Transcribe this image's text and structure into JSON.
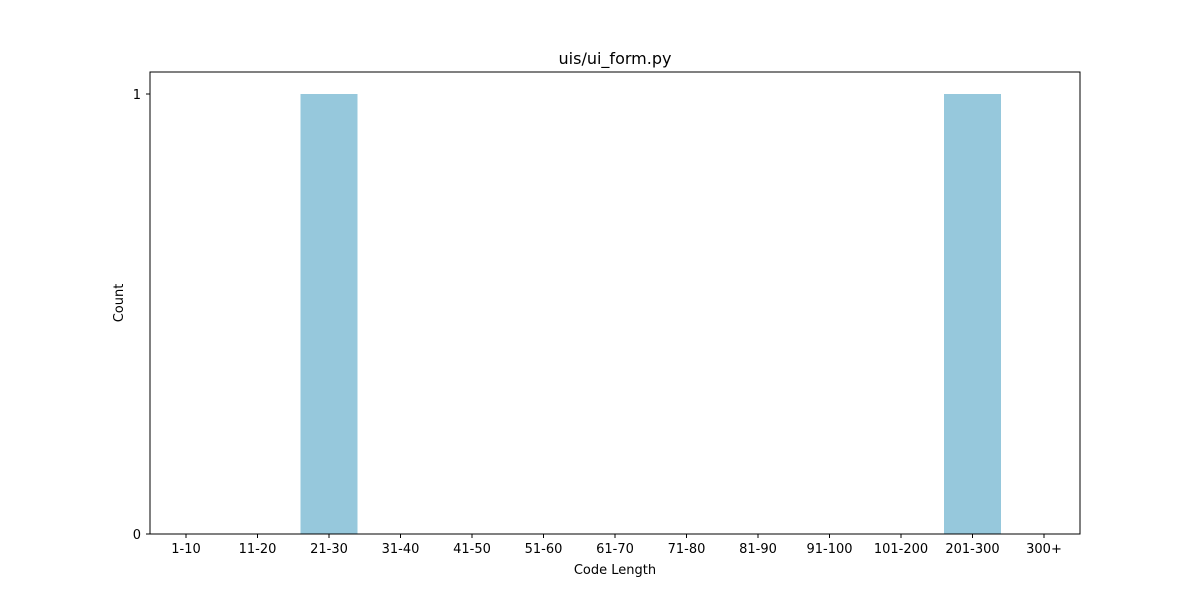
{
  "chart_data": {
    "type": "bar",
    "title": "uis/ui_form.py",
    "xlabel": "Code Length",
    "ylabel": "Count",
    "categories": [
      "1-10",
      "11-20",
      "21-30",
      "31-40",
      "41-50",
      "51-60",
      "61-70",
      "71-80",
      "81-90",
      "91-100",
      "101-200",
      "201-300",
      "300+"
    ],
    "values": [
      0,
      0,
      1,
      0,
      0,
      0,
      0,
      0,
      0,
      0,
      0,
      1,
      0
    ],
    "ylim": [
      0,
      1.05
    ],
    "yticks": [
      0,
      1
    ],
    "bar_color": "#96c8dc",
    "grid": false,
    "legend": "none"
  }
}
